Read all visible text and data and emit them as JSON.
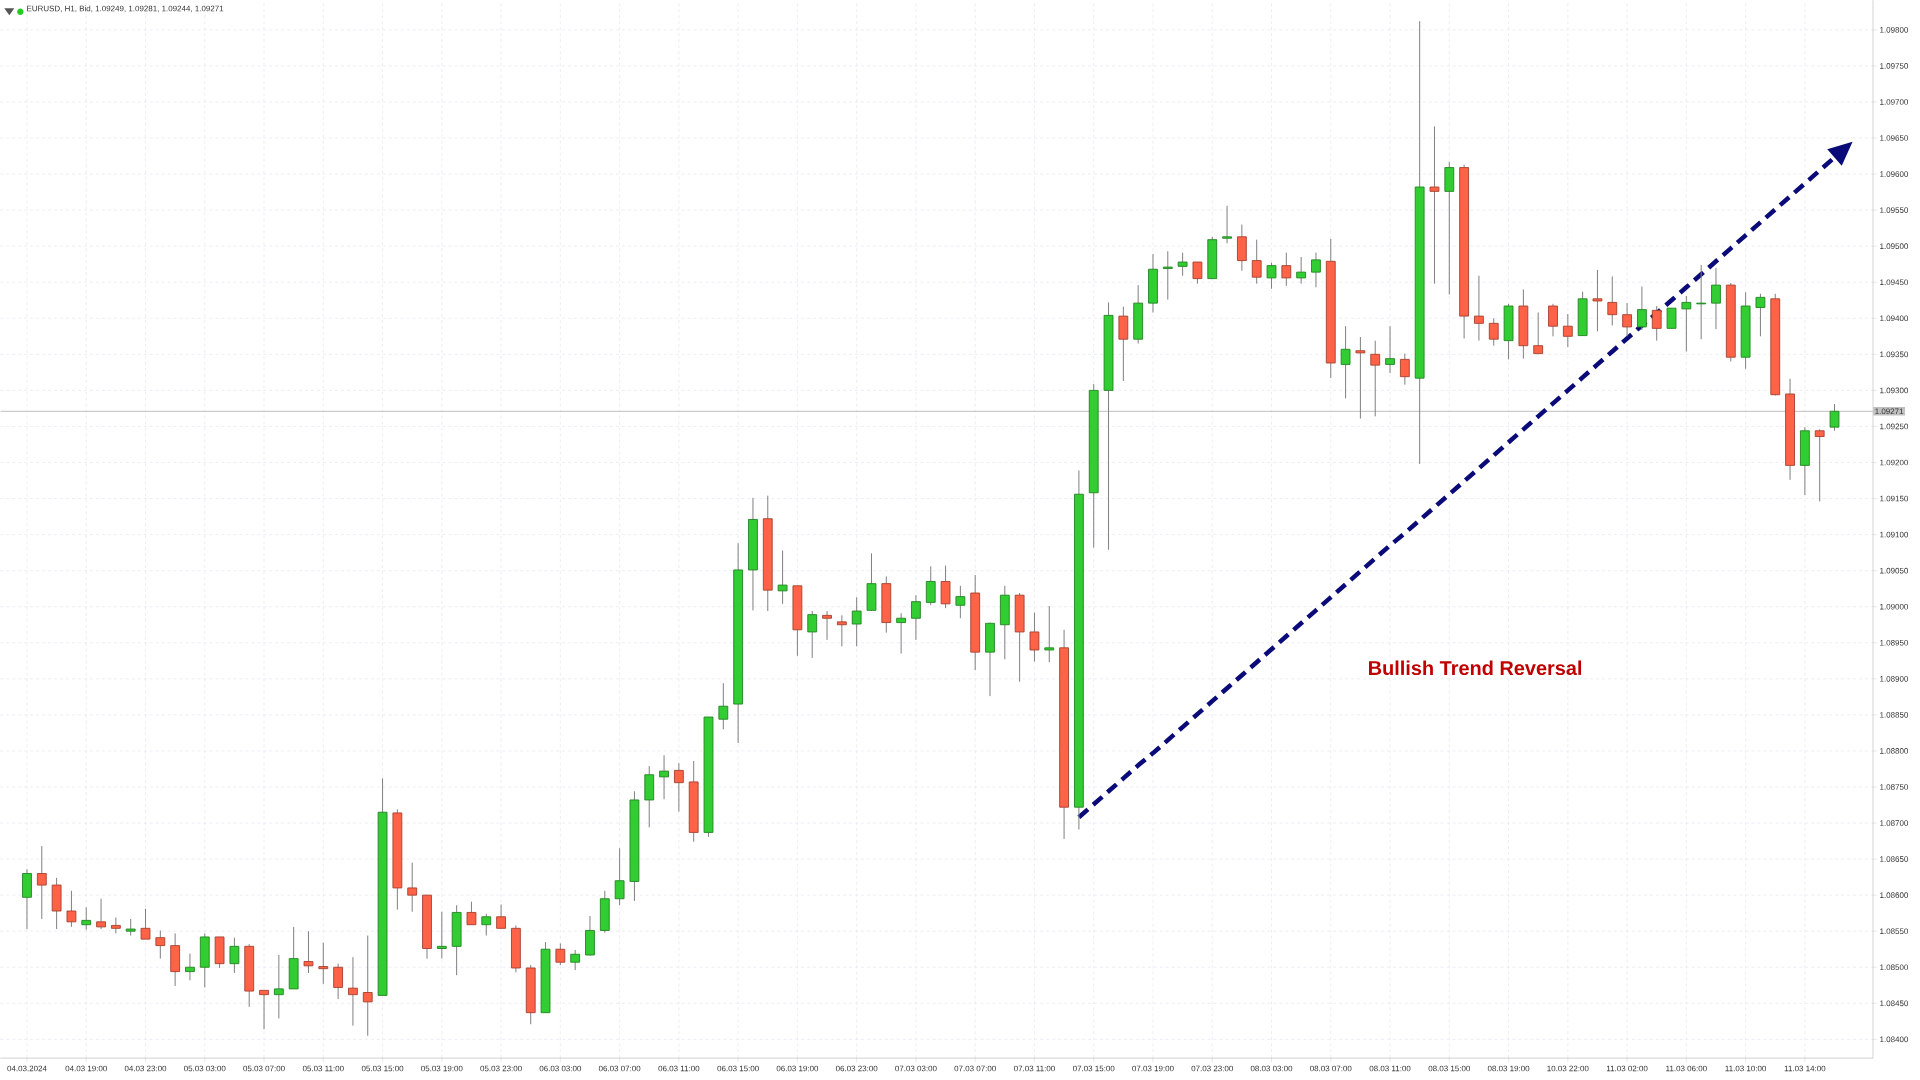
{
  "chart_data": {
    "type": "candlestick",
    "title": "EURUSD, H1, Bid, 1.09249, 1.09281, 1.09244, 1.09271",
    "annotations": [
      "Bullish Trend Reversal"
    ],
    "categories": [
      "04.03.2024",
      null,
      null,
      null,
      "04.03 19:00",
      null,
      null,
      null,
      "04.03 23:00",
      null,
      null,
      null,
      "05.03 03:00",
      null,
      null,
      null,
      "05.03 07:00",
      null,
      null,
      null,
      "05.03 11:00",
      null,
      null,
      null,
      "05.03 15:00",
      null,
      null,
      null,
      "05.03 19:00",
      null,
      null,
      null,
      "05.03 23:00",
      null,
      null,
      null,
      "06.03 03:00",
      null,
      null,
      null,
      "06.03 07:00",
      null,
      null,
      null,
      "06.03 11:00",
      null,
      null,
      null,
      "06.03 15:00",
      null,
      null,
      null,
      "06.03 19:00",
      null,
      null,
      null,
      "06.03 23:00",
      null,
      null,
      null,
      "07.03 03:00",
      null,
      null,
      null,
      "07.03 07:00",
      null,
      null,
      null,
      "07.03 11:00",
      null,
      null,
      null,
      "07.03 15:00",
      null,
      null,
      null,
      "07.03 19:00",
      null,
      null,
      null,
      "07.03 23:00",
      null,
      null,
      null,
      "08.03 03:00",
      null,
      null,
      null,
      "08.03 07:00",
      null,
      null,
      null,
      "08.03 11:00",
      null,
      null,
      null,
      "08.03 15:00",
      null,
      null,
      null,
      "08.03 19:00",
      null,
      null,
      null,
      "10.03 22:00",
      null,
      null,
      null,
      "11.03 02:00",
      null,
      null,
      null,
      "11.03 06:00",
      null,
      null,
      null,
      "11.03 10:00",
      null,
      null,
      null,
      "11.03 14:00",
      null,
      null
    ],
    "ohlc": [
      [
        1.08597,
        1.08636,
        1.08553,
        1.0863
      ],
      [
        1.0863,
        1.08668,
        1.08567,
        1.08614
      ],
      [
        1.08614,
        1.08624,
        1.08553,
        1.08578
      ],
      [
        1.08578,
        1.08606,
        1.08556,
        1.08563
      ],
      [
        1.08559,
        1.08583,
        1.08552,
        1.08565
      ],
      [
        1.08563,
        1.08595,
        1.08553,
        1.08556
      ],
      [
        1.08558,
        1.08569,
        1.08547,
        1.08554
      ],
      [
        1.0855,
        1.08567,
        1.08544,
        1.08553
      ],
      [
        1.08554,
        1.08581,
        1.08539,
        1.08539
      ],
      [
        1.08541,
        1.08551,
        1.08512,
        1.0853
      ],
      [
        1.0853,
        1.08547,
        1.08474,
        1.08494
      ],
      [
        1.08494,
        1.08519,
        1.08482,
        1.085
      ],
      [
        1.085,
        1.08547,
        1.08472,
        1.08542
      ],
      [
        1.08542,
        1.08542,
        1.08499,
        1.08505
      ],
      [
        1.08505,
        1.08541,
        1.08492,
        1.08529
      ],
      [
        1.08529,
        1.08532,
        1.08445,
        1.08467
      ],
      [
        1.08468,
        1.08468,
        1.08414,
        1.08462
      ],
      [
        1.08462,
        1.08517,
        1.08429,
        1.0847
      ],
      [
        1.0847,
        1.08556,
        1.0847,
        1.08512
      ],
      [
        1.08508,
        1.0855,
        1.08492,
        1.08502
      ],
      [
        1.08501,
        1.08534,
        1.08477,
        1.08498
      ],
      [
        1.085,
        1.08505,
        1.08456,
        1.08472
      ],
      [
        1.08471,
        1.08514,
        1.08419,
        1.08462
      ],
      [
        1.08465,
        1.08544,
        1.08405,
        1.08452
      ],
      [
        1.08461,
        1.08762,
        1.08461,
        1.08715
      ],
      [
        1.08714,
        1.08719,
        1.0858,
        1.0861
      ],
      [
        1.0861,
        1.08645,
        1.08577,
        1.086
      ],
      [
        1.086,
        1.086,
        1.08512,
        1.08526
      ],
      [
        1.08526,
        1.08577,
        1.08512,
        1.08529
      ],
      [
        1.08529,
        1.08586,
        1.08489,
        1.08576
      ],
      [
        1.08576,
        1.08591,
        1.08559,
        1.08559
      ],
      [
        1.08559,
        1.08574,
        1.08544,
        1.0857
      ],
      [
        1.0857,
        1.08587,
        1.08554,
        1.08554
      ],
      [
        1.08554,
        1.08558,
        1.08493,
        1.08499
      ],
      [
        1.08499,
        1.08503,
        1.08421,
        1.08437
      ],
      [
        1.08437,
        1.08535,
        1.08437,
        1.08525
      ],
      [
        1.08525,
        1.08533,
        1.08503,
        1.08507
      ],
      [
        1.08507,
        1.08524,
        1.08496,
        1.08518
      ],
      [
        1.08517,
        1.08571,
        1.08516,
        1.08551
      ],
      [
        1.08551,
        1.08606,
        1.08548,
        1.08595
      ],
      [
        1.08595,
        1.08665,
        1.08586,
        1.0862
      ],
      [
        1.08619,
        1.08744,
        1.08592,
        1.08732
      ],
      [
        1.08732,
        1.08779,
        1.08694,
        1.08767
      ],
      [
        1.08764,
        1.08794,
        1.08733,
        1.08772
      ],
      [
        1.08773,
        1.08783,
        1.08716,
        1.08756
      ],
      [
        1.08757,
        1.08786,
        1.08674,
        1.08687
      ],
      [
        1.08687,
        1.08847,
        1.08681,
        1.08847
      ],
      [
        1.08844,
        1.08894,
        1.0883,
        1.08862
      ],
      [
        1.08865,
        1.09088,
        1.08811,
        1.09051
      ],
      [
        1.09051,
        1.09151,
        1.08995,
        1.09121
      ],
      [
        1.09122,
        1.09154,
        1.08994,
        1.09023
      ],
      [
        1.09022,
        1.09078,
        1.09004,
        1.0903
      ],
      [
        1.09029,
        1.09029,
        1.08932,
        1.08968
      ],
      [
        1.08965,
        1.08994,
        1.08929,
        1.08989
      ],
      [
        1.08988,
        1.08994,
        1.08954,
        1.08984
      ],
      [
        1.08979,
        1.08988,
        1.08945,
        1.08975
      ],
      [
        1.08976,
        1.09013,
        1.08945,
        1.08994
      ],
      [
        1.08995,
        1.09074,
        1.08994,
        1.09032
      ],
      [
        1.09032,
        1.09042,
        1.08964,
        1.08978
      ],
      [
        1.08978,
        1.08991,
        1.08935,
        1.08984
      ],
      [
        1.08984,
        1.09016,
        1.08954,
        1.09007
      ],
      [
        1.09006,
        1.09056,
        1.09002,
        1.09035
      ],
      [
        1.09035,
        1.09057,
        1.08998,
        1.09004
      ],
      [
        1.09002,
        1.09029,
        1.08984,
        1.09014
      ],
      [
        1.09019,
        1.09044,
        1.08912,
        1.08937
      ],
      [
        1.08937,
        1.08978,
        1.08876,
        1.08977
      ],
      [
        1.08975,
        1.09029,
        1.08927,
        1.09016
      ],
      [
        1.09016,
        1.09019,
        1.08896,
        1.08965
      ],
      [
        1.08965,
        1.08992,
        1.08924,
        1.0894
      ],
      [
        1.0894,
        1.09001,
        1.08923,
        1.08943
      ],
      [
        1.08943,
        1.08968,
        1.08678,
        1.08722
      ],
      [
        1.08722,
        1.09189,
        1.08691,
        1.09156
      ],
      [
        1.09158,
        1.09309,
        1.09082,
        1.093
      ],
      [
        1.093,
        1.09422,
        1.09079,
        1.09404
      ],
      [
        1.09403,
        1.09416,
        1.09313,
        1.09371
      ],
      [
        1.09371,
        1.09446,
        1.09365,
        1.09421
      ],
      [
        1.09421,
        1.09489,
        1.09408,
        1.09468
      ],
      [
        1.09469,
        1.09493,
        1.09426,
        1.09471
      ],
      [
        1.09472,
        1.09491,
        1.09459,
        1.09478
      ],
      [
        1.09478,
        1.09478,
        1.09448,
        1.09455
      ],
      [
        1.09455,
        1.09513,
        1.09455,
        1.09509
      ],
      [
        1.09511,
        1.09556,
        1.09504,
        1.09513
      ],
      [
        1.09513,
        1.0953,
        1.09466,
        1.0948
      ],
      [
        1.0948,
        1.09509,
        1.09448,
        1.09457
      ],
      [
        1.09456,
        1.09477,
        1.09441,
        1.09473
      ],
      [
        1.09473,
        1.09491,
        1.09445,
        1.09456
      ],
      [
        1.09456,
        1.09485,
        1.09448,
        1.09464
      ],
      [
        1.09464,
        1.09491,
        1.09443,
        1.09481
      ],
      [
        1.09479,
        1.0951,
        1.09317,
        1.09338
      ],
      [
        1.09336,
        1.09389,
        1.09289,
        1.09357
      ],
      [
        1.09355,
        1.09374,
        1.09261,
        1.09352
      ],
      [
        1.0935,
        1.09369,
        1.09264,
        1.09335
      ],
      [
        1.09336,
        1.09389,
        1.09324,
        1.09344
      ],
      [
        1.09343,
        1.09351,
        1.09308,
        1.09319
      ],
      [
        1.09317,
        1.09812,
        1.09198,
        1.09582
      ],
      [
        1.09582,
        1.09666,
        1.09448,
        1.09576
      ],
      [
        1.09576,
        1.09617,
        1.09433,
        1.09609
      ],
      [
        1.09609,
        1.09613,
        1.09372,
        1.09403
      ],
      [
        1.09403,
        1.09459,
        1.09369,
        1.09393
      ],
      [
        1.09393,
        1.094,
        1.09362,
        1.09371
      ],
      [
        1.09369,
        1.0942,
        1.09343,
        1.09417
      ],
      [
        1.09417,
        1.0944,
        1.09344,
        1.09362
      ],
      [
        1.09362,
        1.09408,
        1.09351,
        1.09351
      ],
      [
        1.09417,
        1.0942,
        1.09375,
        1.09389
      ],
      [
        1.09389,
        1.09406,
        1.0936,
        1.09375
      ],
      [
        1.09376,
        1.09437,
        1.09376,
        1.09427
      ],
      [
        1.09427,
        1.09467,
        1.09382,
        1.09424
      ],
      [
        1.09422,
        1.09458,
        1.0939,
        1.09405
      ],
      [
        1.09405,
        1.09421,
        1.09375,
        1.09388
      ],
      [
        1.09388,
        1.09444,
        1.09384,
        1.09412
      ],
      [
        1.09411,
        1.09417,
        1.09369,
        1.09386
      ],
      [
        1.09386,
        1.09414,
        1.09386,
        1.09414
      ],
      [
        1.09413,
        1.09431,
        1.09354,
        1.09422
      ],
      [
        1.0942,
        1.09474,
        1.09371,
        1.09421
      ],
      [
        1.09421,
        1.0947,
        1.09385,
        1.09446
      ],
      [
        1.09446,
        1.09449,
        1.0934,
        1.09346
      ],
      [
        1.09346,
        1.09436,
        1.0933,
        1.09417
      ],
      [
        1.09415,
        1.09434,
        1.09375,
        1.09429
      ],
      [
        1.09427,
        1.09434,
        1.09293,
        1.09294
      ],
      [
        1.09295,
        1.09316,
        1.09176,
        1.09196
      ],
      [
        1.09196,
        1.09249,
        1.09155,
        1.09244
      ],
      [
        1.09244,
        1.09246,
        1.09146,
        1.09236
      ],
      [
        1.09249,
        1.09281,
        1.09244,
        1.09271
      ]
    ],
    "colors": [
      "#32cd32",
      "#ff6347",
      "#ff6347",
      "#ff6347",
      "#32cd32",
      "#ff6347",
      "#ff6347",
      "#32cd32",
      "#ff6347",
      "#ff6347",
      "#ff6347",
      "#32cd32",
      "#32cd32",
      "#ff6347",
      "#32cd32",
      "#ff6347",
      "#ff6347",
      "#32cd32",
      "#32cd32",
      "#ff6347",
      "#ff6347",
      "#ff6347",
      "#ff6347",
      "#ff6347",
      "#32cd32",
      "#ff6347",
      "#ff6347",
      "#ff6347",
      "#32cd32",
      "#32cd32",
      "#ff6347",
      "#32cd32",
      "#ff6347",
      "#ff6347",
      "#ff6347",
      "#32cd32",
      "#ff6347",
      "#32cd32",
      "#32cd32",
      "#32cd32",
      "#32cd32",
      "#32cd32",
      "#32cd32",
      "#32cd32",
      "#ff6347",
      "#ff6347",
      "#32cd32",
      "#32cd32",
      "#32cd32",
      "#32cd32",
      "#ff6347",
      "#32cd32",
      "#ff6347",
      "#32cd32",
      "#ff6347",
      "#ff6347",
      "#32cd32",
      "#32cd32",
      "#ff6347",
      "#32cd32",
      "#32cd32",
      "#32cd32",
      "#ff6347",
      "#32cd32",
      "#ff6347",
      "#32cd32",
      "#32cd32",
      "#ff6347",
      "#ff6347",
      "#32cd32",
      "#ff6347",
      "#32cd32",
      "#32cd32",
      "#32cd32",
      "#ff6347",
      "#32cd32",
      "#32cd32",
      "#32cd32",
      "#32cd32",
      "#ff6347",
      "#32cd32",
      "#32cd32",
      "#ff6347",
      "#ff6347",
      "#32cd32",
      "#ff6347",
      "#32cd32",
      "#32cd32",
      "#ff6347",
      "#32cd32",
      "#ff6347",
      "#ff6347",
      "#32cd32",
      "#ff6347",
      "#32cd32",
      "#ff6347",
      "#32cd32",
      "#ff6347",
      "#ff6347",
      "#ff6347",
      "#32cd32",
      "#ff6347",
      "#ff6347",
      "#ff6347",
      "#ff6347",
      "#32cd32",
      "#ff6347",
      "#ff6347",
      "#ff6347",
      "#32cd32",
      "#ff6347",
      "#32cd32",
      "#32cd32",
      "#32cd32",
      "#32cd32",
      "#ff6347",
      "#32cd32",
      "#32cd32",
      "#ff6347",
      "#ff6347",
      "#32cd32",
      "#ff6347",
      "#32cd32"
    ],
    "ylim": [
      1.08374,
      1.09841
    ],
    "yticks": [
      {
        "value": 1.084,
        "label": "1.08400"
      },
      {
        "value": 1.0845,
        "label": "1.08450"
      },
      {
        "value": 1.085,
        "label": "1.08500"
      },
      {
        "value": 1.0855,
        "label": "1.08550"
      },
      {
        "value": 1.086,
        "label": "1.08600"
      },
      {
        "value": 1.0865,
        "label": "1.08650"
      },
      {
        "value": 1.087,
        "label": "1.08700"
      },
      {
        "value": 1.0875,
        "label": "1.08750"
      },
      {
        "value": 1.088,
        "label": "1.08800"
      },
      {
        "value": 1.0885,
        "label": "1.08850"
      },
      {
        "value": 1.089,
        "label": "1.08900"
      },
      {
        "value": 1.0895,
        "label": "1.08950"
      },
      {
        "value": 1.09,
        "label": "1.09000"
      },
      {
        "value": 1.0905,
        "label": "1.09050"
      },
      {
        "value": 1.091,
        "label": "1.09100"
      },
      {
        "value": 1.0915,
        "label": "1.09150"
      },
      {
        "value": 1.092,
        "label": "1.09200"
      },
      {
        "value": 1.0925,
        "label": "1.09250"
      },
      {
        "value": 1.093,
        "label": "1.09300"
      },
      {
        "value": 1.0935,
        "label": "1.09350"
      },
      {
        "value": 1.094,
        "label": "1.09400"
      },
      {
        "value": 1.0945,
        "label": "1.09450"
      },
      {
        "value": 1.095,
        "label": "1.09500"
      },
      {
        "value": 1.0955,
        "label": "1.09550"
      },
      {
        "value": 1.096,
        "label": "1.09600"
      },
      {
        "value": 1.0965,
        "label": "1.09650"
      },
      {
        "value": 1.097,
        "label": "1.09700"
      },
      {
        "value": 1.0975,
        "label": "1.09750"
      },
      {
        "value": 1.098,
        "label": "1.09800"
      }
    ],
    "ref_lines": [
      {
        "axis": "y",
        "value": 1.09271,
        "label": "1.09271",
        "color": "#c0c0c0"
      }
    ],
    "series": [
      {
        "type": "line",
        "color": "#0a0a78",
        "line_style": "dashed",
        "values": [
          null,
          null,
          null,
          null,
          null,
          null,
          null,
          null,
          null,
          null,
          null,
          null,
          null,
          null,
          null,
          null,
          null,
          null,
          null,
          null,
          null,
          null,
          null,
          null,
          null,
          null,
          null,
          null,
          null,
          null,
          null,
          null,
          null,
          null,
          null,
          null,
          null,
          null,
          null,
          null,
          null,
          null,
          null,
          null,
          null,
          null,
          null,
          null,
          null,
          null,
          null,
          null,
          null,
          null,
          null,
          null,
          null,
          null,
          null,
          null,
          null,
          null,
          null,
          null,
          null,
          null,
          null,
          null,
          null,
          null,
          null,
          1.08708,
          1.08726,
          1.08744,
          1.08762,
          1.0878,
          1.08797,
          1.08815,
          1.08833,
          1.08851,
          1.08869,
          1.08887,
          1.08905,
          1.08923,
          1.08941,
          1.08959,
          1.08977,
          1.08995,
          1.09013,
          1.09031,
          1.09049,
          1.09067,
          1.09085,
          1.09102,
          1.0912,
          1.09138,
          1.09156,
          1.09174,
          1.09192,
          1.0921,
          1.09228,
          1.09246,
          1.09264,
          1.09282,
          1.093,
          1.09318,
          1.09336,
          1.09354,
          1.09372,
          1.0939,
          1.09407,
          1.09425,
          1.09443,
          1.09461,
          1.09479,
          1.09497,
          1.09515,
          1.09533,
          1.09551,
          1.09569,
          1.09587,
          1.09605,
          1.09623
        ]
      }
    ],
    "grid": true
  }
}
